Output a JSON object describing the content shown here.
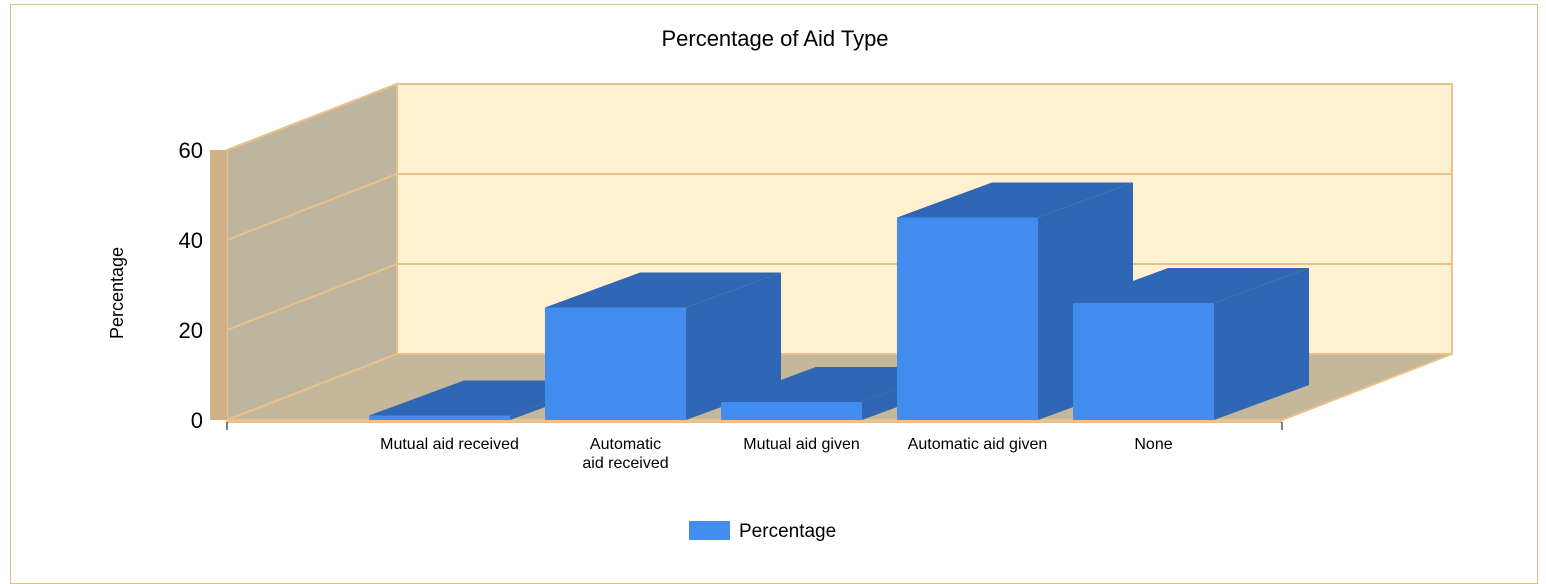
{
  "chart_data": {
    "type": "bar",
    "title": "Percentage of Aid Type",
    "xlabel": "",
    "ylabel": "Percentage",
    "ylim": [
      0,
      60
    ],
    "yticks": [
      "0",
      "20",
      "40",
      "60"
    ],
    "categories": [
      "Mutual aid received",
      "Automatic aid received",
      "Mutual aid given",
      "Automatic aid given",
      "None"
    ],
    "category_lines": [
      [
        "Mutual aid received"
      ],
      [
        "Automatic",
        "aid received"
      ],
      [
        "Mutual aid given"
      ],
      [
        "Automatic aid given"
      ],
      [
        "None"
      ]
    ],
    "series": [
      {
        "name": "Percentage",
        "values": [
          1,
          25,
          4,
          45,
          26
        ]
      }
    ],
    "grid": true,
    "legend_position": "bottom-center",
    "colors": {
      "bar_front": "#428bef",
      "bar_side": "#2f67b5",
      "wall": "#fff0d2",
      "side_wall": "#beb59e",
      "floor": "#c4b79a",
      "wall_line": "#e8c28a",
      "axis_band": "#cfb088"
    }
  }
}
